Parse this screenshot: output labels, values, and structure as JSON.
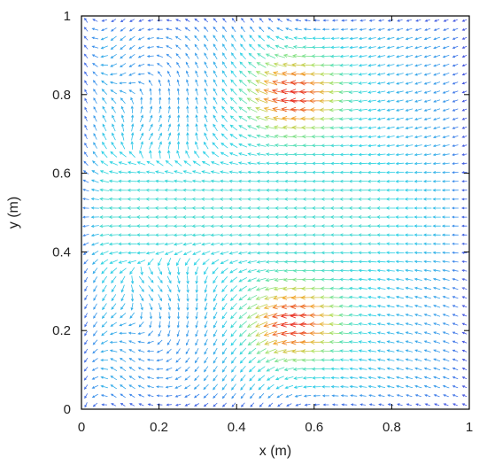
{
  "chart_data": {
    "type": "vector-field",
    "xlabel": "x (m)",
    "ylabel": "y (m)",
    "xlim": [
      0,
      1
    ],
    "ylim": [
      0,
      1
    ],
    "x_ticks": [
      "0",
      "0.2",
      "0.4",
      "0.6",
      "0.8",
      "1"
    ],
    "y_ticks": [
      "0",
      "0.2",
      "0.4",
      "0.6",
      "0.8",
      "1"
    ],
    "grid": false,
    "legend": "none",
    "colormap": "rainbow",
    "color_low": "#4b2bd8",
    "color_high": "#e8281a",
    "vortex_centers": [
      [
        0.21,
        0.88
      ],
      [
        0.22,
        0.14
      ]
    ],
    "high_speed_regions": [
      [
        0.55,
        0.8
      ],
      [
        0.55,
        0.22
      ]
    ],
    "flow_direction_right_side": "leftward"
  }
}
